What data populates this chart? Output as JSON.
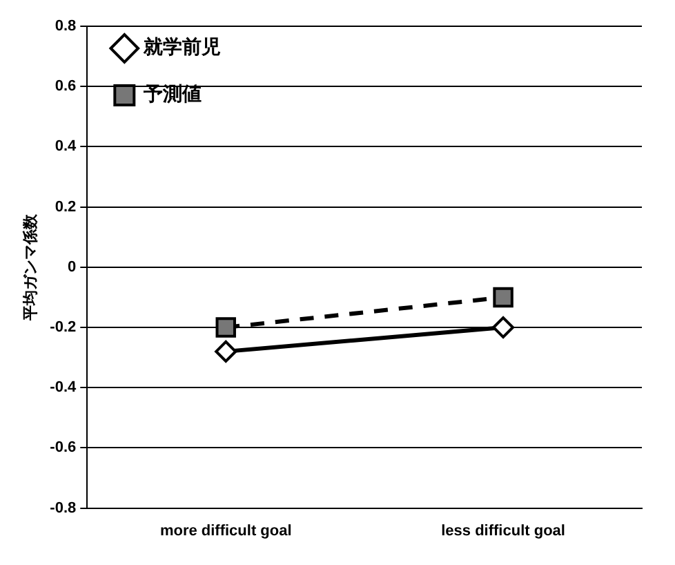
{
  "chart_data": {
    "type": "line",
    "ylabel": "平均ガンマ係数",
    "categories": [
      "more difficult goal",
      "less difficult goal"
    ],
    "series": [
      {
        "name": "就学前児",
        "color": "#000000",
        "values": [
          -0.28,
          -0.2
        ],
        "marker": "diamond",
        "line_style": "solid"
      },
      {
        "name": "予測値",
        "color": "#000000",
        "values": [
          -0.2,
          -0.1
        ],
        "marker": "square",
        "line_style": "dashed"
      }
    ],
    "ylim": [
      -0.8,
      0.8
    ],
    "yticks": [
      -0.8,
      -0.6,
      -0.4,
      -0.2,
      0,
      0.2,
      0.4,
      0.6,
      0.8
    ],
    "grid": "y",
    "legend": "top left"
  }
}
